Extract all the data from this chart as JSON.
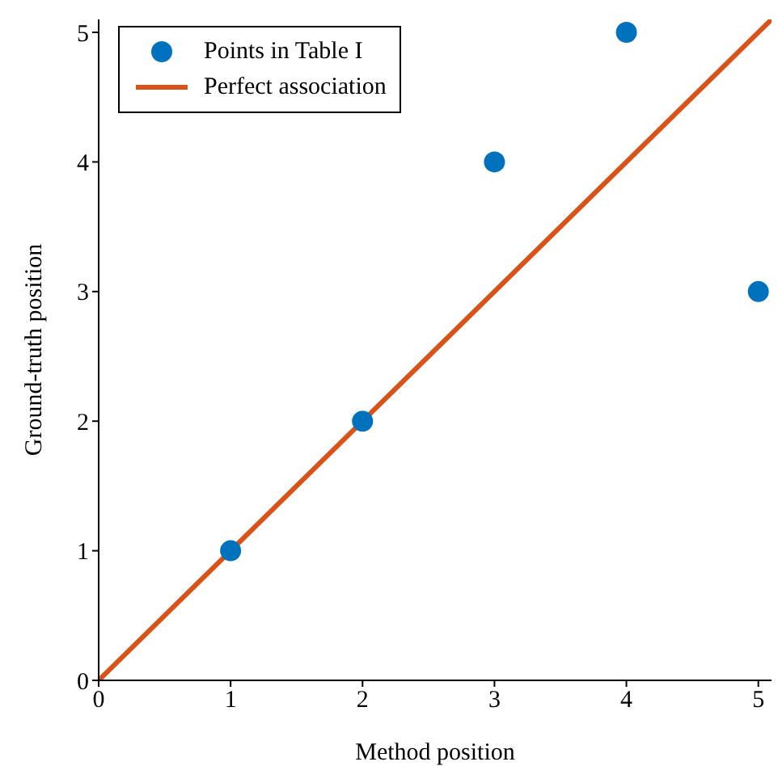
{
  "chart_data": {
    "type": "scatter",
    "xlabel": "Method position",
    "ylabel": "Ground-truth position",
    "xlim": [
      0,
      5.1
    ],
    "ylim": [
      0,
      5.1
    ],
    "xticks": [
      0,
      1,
      2,
      3,
      4,
      5
    ],
    "yticks": [
      0,
      1,
      2,
      3,
      4,
      5
    ],
    "grid": false,
    "legend": "top left",
    "marker": "circle",
    "series": [
      {
        "name": "Points in Table I",
        "color": "#0072bd",
        "x": [
          1,
          2,
          3,
          4,
          5
        ],
        "values": [
          1,
          2,
          4,
          5,
          3
        ]
      },
      {
        "name": "Perfect association",
        "type": "line",
        "color": "#d95319",
        "x": [
          0,
          5.1
        ],
        "values": [
          0,
          5.1
        ],
        "line_style": "solid",
        "marker": "none"
      }
    ]
  }
}
